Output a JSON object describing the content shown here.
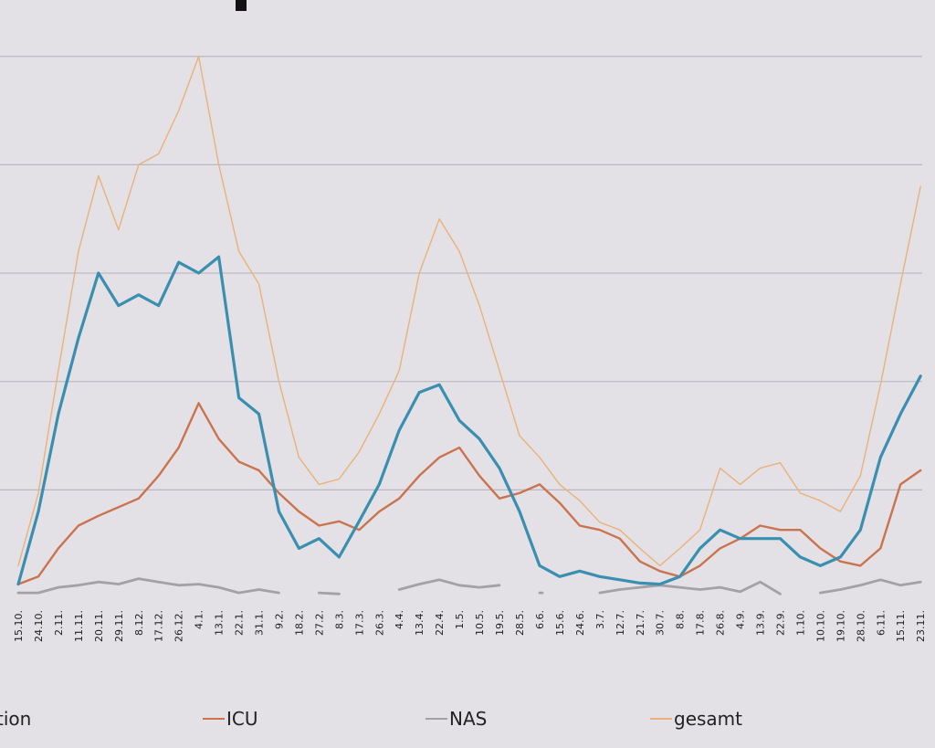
{
  "chart_data": {
    "type": "line",
    "categories": [
      "15.10.",
      "24.10.",
      "2.11.",
      "11.11.",
      "20.11.",
      "29.11.",
      "8.12.",
      "17.12.",
      "26.12.",
      "4.1.",
      "13.1.",
      "22.1.",
      "31.1.",
      "9.2.",
      "18.2.",
      "27.2.",
      "8.3.",
      "17.3.",
      "26.3.",
      "4.4.",
      "13.4.",
      "22.4.",
      "1.5.",
      "10.5.",
      "19.5.",
      "28.5.",
      "6.6.",
      "15.6.",
      "24.6.",
      "3.7.",
      "12.7.",
      "21.7.",
      "30.7.",
      "8.8.",
      "17.8.",
      "26.8.",
      "4.9.",
      "13.9.",
      "22.9.",
      "1.10.",
      "10.10.",
      "19.10.",
      "28.10.",
      "6.11.",
      "15.11.",
      "23.11."
    ],
    "series": [
      {
        "name": "tion",
        "color": "#3a8fb0",
        "values": [
          0.13,
          0.8,
          1.7,
          2.4,
          3.0,
          2.7,
          2.8,
          2.7,
          3.1,
          3.0,
          3.15,
          1.85,
          1.7,
          0.8,
          0.46,
          0.55,
          0.38,
          0.71,
          1.05,
          1.55,
          1.9,
          1.97,
          1.64,
          1.47,
          1.2,
          0.8,
          0.3,
          0.2,
          0.25,
          0.2,
          0.17,
          0.14,
          0.13,
          0.2,
          0.46,
          0.63,
          0.55,
          0.55,
          0.55,
          0.38,
          0.3,
          0.38,
          0.63,
          1.3,
          1.7,
          2.05
        ]
      },
      {
        "name": "ICU",
        "color": "#c9744e",
        "values": [
          0.13,
          0.2,
          0.46,
          0.67,
          0.76,
          0.84,
          0.92,
          1.13,
          1.39,
          1.8,
          1.47,
          1.26,
          1.18,
          0.97,
          0.8,
          0.67,
          0.71,
          0.63,
          0.8,
          0.92,
          1.13,
          1.3,
          1.39,
          1.13,
          0.92,
          0.97,
          1.05,
          0.88,
          0.67,
          0.63,
          0.55,
          0.34,
          0.25,
          0.2,
          0.3,
          0.46,
          0.55,
          0.67,
          0.63,
          0.63,
          0.46,
          0.34,
          0.3,
          0.46,
          1.05,
          1.18
        ]
      },
      {
        "name": "NAS",
        "color": "#a3a1a6",
        "values": [
          0.05,
          0.05,
          0.1,
          0.12,
          0.15,
          0.13,
          0.18,
          0.15,
          0.12,
          0.13,
          0.1,
          0.05,
          0.08,
          0.05,
          null,
          0.05,
          0.04,
          null,
          null,
          0.08,
          0.13,
          0.17,
          0.12,
          0.1,
          0.12,
          null,
          0.05,
          null,
          null,
          0.05,
          0.08,
          0.1,
          0.12,
          0.1,
          0.08,
          0.1,
          0.06,
          0.15,
          0.04,
          null,
          0.05,
          0.08,
          0.12,
          0.17,
          0.12,
          0.15
        ]
      },
      {
        "name": "gesamt",
        "color": "#e8b27a",
        "values": [
          0.3,
          0.97,
          2.1,
          3.2,
          3.9,
          3.4,
          4.0,
          4.1,
          4.5,
          5.0,
          4.0,
          3.2,
          2.9,
          2.0,
          1.3,
          1.05,
          1.1,
          1.35,
          1.7,
          2.1,
          3.0,
          3.5,
          3.2,
          2.7,
          2.1,
          1.5,
          1.3,
          1.05,
          0.9,
          0.7,
          0.63,
          0.46,
          0.3,
          0.46,
          0.63,
          1.2,
          1.05,
          1.2,
          1.25,
          0.97,
          0.9,
          0.8,
          1.13,
          1.97,
          2.9,
          3.8
        ]
      }
    ],
    "ylim": [
      0,
      5.2
    ],
    "yticks": [
      1,
      2,
      3,
      4,
      5
    ],
    "grid": true
  }
}
